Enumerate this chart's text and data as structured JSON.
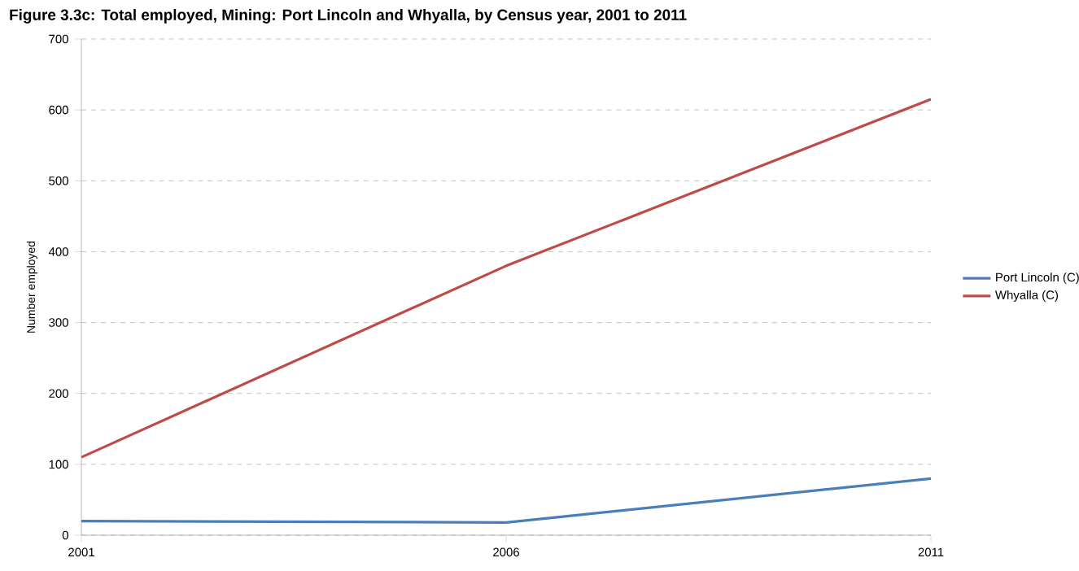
{
  "chart_data": {
    "type": "line",
    "title": "Figure 3.3c:  Total employed, Mining:  Port Lincoln and Whyalla, by Census year, 2001 to 2011",
    "ylabel": "Number employed",
    "x": [
      2001,
      2006,
      2011
    ],
    "xlim": [
      2001,
      2011
    ],
    "xticks": [
      2001,
      2006,
      2011
    ],
    "ylim": [
      0,
      700
    ],
    "yticks": [
      0,
      100,
      200,
      300,
      400,
      500,
      600,
      700
    ],
    "grid": "y",
    "legend": "right",
    "marker": "none",
    "line_style": "solid",
    "series": [
      {
        "name": "Port Lincoln  (C)",
        "color": "#4a7ebb",
        "values": [
          20,
          18,
          80
        ]
      },
      {
        "name": "Whyalla  (C)",
        "color": "#be4b48",
        "values": [
          110,
          380,
          615
        ]
      }
    ]
  }
}
